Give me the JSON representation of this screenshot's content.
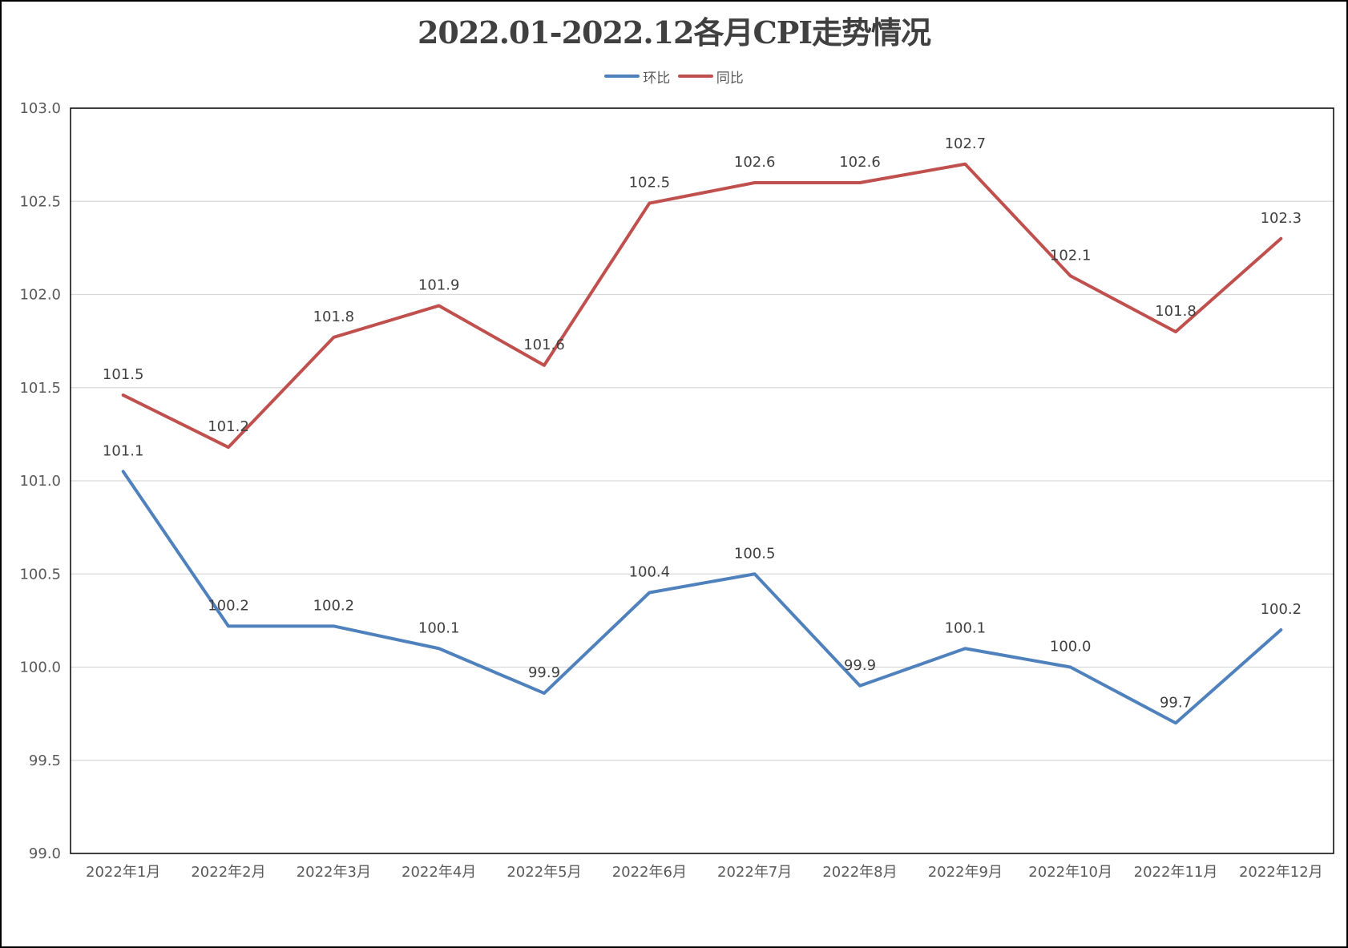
{
  "chart_data": {
    "type": "line",
    "title": "2022.01-2022.12各月CPI走势情况",
    "xlabel": "",
    "ylabel": "",
    "categories": [
      "2022年1月",
      "2022年2月",
      "2022年3月",
      "2022年4月",
      "2022年5月",
      "2022年6月",
      "2022年7月",
      "2022年8月",
      "2022年9月",
      "2022年10月",
      "2022年11月",
      "2022年12月"
    ],
    "ylim": [
      99.0,
      103.0
    ],
    "yticks": [
      "99.0",
      "99.5",
      "100.0",
      "100.5",
      "101.0",
      "101.5",
      "102.0",
      "102.5",
      "103.0"
    ],
    "grid": true,
    "legend_position": "top",
    "series": [
      {
        "name": "环比",
        "color": "#4F81BD",
        "values": [
          101.05,
          100.22,
          100.22,
          100.1,
          99.86,
          100.4,
          100.5,
          99.9,
          100.1,
          100.0,
          99.7,
          100.2
        ],
        "labels": [
          "101.1",
          "100.2",
          "100.2",
          "100.1",
          "99.9",
          "100.4",
          "100.5",
          "99.9",
          "100.1",
          "100.0",
          "99.7",
          "100.2"
        ]
      },
      {
        "name": "同比",
        "color": "#C0504D",
        "values": [
          101.46,
          101.18,
          101.77,
          101.94,
          101.62,
          102.49,
          102.6,
          102.6,
          102.7,
          102.1,
          101.8,
          102.3
        ],
        "labels": [
          "101.5",
          "101.2",
          "101.8",
          "101.9",
          "101.6",
          "102.5",
          "102.6",
          "102.6",
          "102.7",
          "102.1",
          "101.8",
          "102.3"
        ]
      }
    ]
  }
}
